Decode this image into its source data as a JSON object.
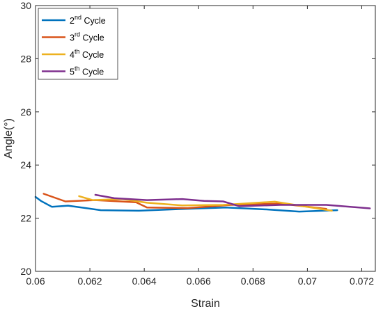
{
  "chart_data": {
    "type": "line",
    "xlabel": "Strain",
    "ylabel": "Angle(°)",
    "xlim": [
      0.06,
      0.0725
    ],
    "ylim": [
      20,
      30
    ],
    "xticks": [
      0.06,
      0.062,
      0.064,
      0.066,
      0.068,
      0.07,
      0.072
    ],
    "xtick_labels": [
      "0.06",
      "0.062",
      "0.064",
      "0.066",
      "0.068",
      "0.07",
      "0.072"
    ],
    "yticks": [
      20,
      22,
      24,
      26,
      28,
      30
    ],
    "ytick_labels": [
      "20",
      "22",
      "24",
      "26",
      "28",
      "30"
    ],
    "grid": false,
    "legend_position": "top-left",
    "series": [
      {
        "name": "2nd Cycle",
        "name_base": "2",
        "name_sup": "nd",
        "name_rest": " Cycle",
        "color": "#0072BD",
        "x": [
          0.06,
          0.0602,
          0.0606,
          0.0612,
          0.0624,
          0.0638,
          0.0655,
          0.067,
          0.0685,
          0.0697,
          0.0711
        ],
        "y": [
          22.8,
          22.65,
          22.43,
          22.47,
          22.3,
          22.28,
          22.35,
          22.4,
          22.33,
          22.25,
          22.3
        ]
      },
      {
        "name": "3rd Cycle",
        "name_base": "3",
        "name_sup": "rd",
        "name_rest": " Cycle",
        "color": "#D95319",
        "x": [
          0.0603,
          0.0611,
          0.0622,
          0.0637,
          0.0641,
          0.0656,
          0.0672,
          0.069,
          0.0707
        ],
        "y": [
          22.92,
          22.63,
          22.68,
          22.6,
          22.4,
          22.38,
          22.5,
          22.55,
          22.35
        ]
      },
      {
        "name": "4th Cycle",
        "name_base": "4",
        "name_sup": "th",
        "name_rest": " Cycle",
        "color": "#EDB120",
        "x": [
          0.0616,
          0.0621,
          0.0632,
          0.0641,
          0.0654,
          0.0669,
          0.0688,
          0.0709
        ],
        "y": [
          22.83,
          22.68,
          22.72,
          22.58,
          22.48,
          22.5,
          22.62,
          22.28
        ]
      },
      {
        "name": "5th Cycle",
        "name_base": "5",
        "name_sup": "th",
        "name_rest": " Cycle",
        "color": "#7E2F8E",
        "x": [
          0.0622,
          0.0629,
          0.0641,
          0.0654,
          0.0662,
          0.0669,
          0.0675,
          0.069,
          0.0707,
          0.0723
        ],
        "y": [
          22.88,
          22.75,
          22.68,
          22.72,
          22.65,
          22.63,
          22.45,
          22.5,
          22.5,
          22.37
        ]
      }
    ]
  }
}
